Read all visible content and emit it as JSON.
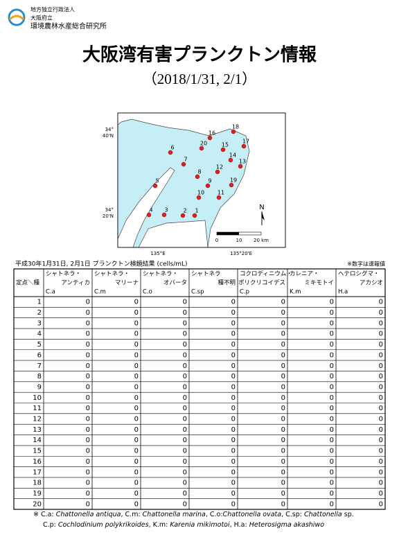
{
  "header": {
    "org": [
      "地方独立行政法人",
      "大阪府立",
      "環境農林水産総合研究所"
    ],
    "title": "大阪湾有害プランクトン情報",
    "subtitle": "（2018/1/31, 2/1）"
  },
  "map": {
    "lat_labels": [
      [
        "34°",
        "40'N"
      ],
      [
        "34°",
        "20'N"
      ]
    ],
    "lon_labels": [
      "135°E",
      "135°20'E"
    ],
    "scale": [
      "0",
      "10",
      "20 km"
    ],
    "north": "N",
    "stations": [
      "1",
      "2",
      "3",
      "4",
      "5",
      "6",
      "7",
      "8",
      "9",
      "10",
      "11",
      "12",
      "13",
      "14",
      "15",
      "16",
      "17",
      "18",
      "19",
      "20"
    ]
  },
  "table": {
    "caption": "平成30年1月31日, 2月1日  プランクトン検鏡結果 (cells/mL)",
    "note": "※数字は速報値",
    "header": [
      "定点＼種",
      {
        "line1": "シャトネラ・",
        "line2": "アンティカ",
        "abbr": "C.a"
      },
      {
        "line1": "シャトネラ・",
        "line2": "マリーナ",
        "abbr": "C.m"
      },
      {
        "line1": "シャトネラ・",
        "line2": "オバータ",
        "abbr": "C.o"
      },
      {
        "line1": "シャトネラ",
        "line2": "種不明",
        "abbr": "C.sp"
      },
      {
        "line1": "コクロディニウム・",
        "line2": "ポリクリコイデス",
        "abbr": "C.p"
      },
      {
        "line1": "カレニア・",
        "line2": "ミキモトイ",
        "abbr": "K.m"
      },
      {
        "line1": "ヘテロシグマ・",
        "line2": "アカシオ",
        "abbr": "H.a"
      }
    ],
    "rows": [
      [
        1,
        0,
        0,
        0,
        0,
        0,
        0,
        0
      ],
      [
        2,
        0,
        0,
        0,
        0,
        0,
        0,
        0
      ],
      [
        3,
        0,
        0,
        0,
        0,
        0,
        0,
        0
      ],
      [
        4,
        0,
        0,
        0,
        0,
        0,
        0,
        0
      ],
      [
        5,
        0,
        0,
        0,
        0,
        0,
        0,
        0
      ],
      [
        6,
        0,
        0,
        0,
        0,
        0,
        0,
        0
      ],
      [
        7,
        0,
        0,
        0,
        0,
        0,
        0,
        0
      ],
      [
        8,
        0,
        0,
        0,
        0,
        0,
        0,
        0
      ],
      [
        9,
        0,
        0,
        0,
        0,
        0,
        0,
        0
      ],
      [
        10,
        0,
        0,
        0,
        0,
        0,
        0,
        0
      ],
      [
        11,
        0,
        0,
        0,
        0,
        0,
        0,
        0
      ],
      [
        12,
        0,
        0,
        0,
        0,
        0,
        0,
        0
      ],
      [
        13,
        0,
        0,
        0,
        0,
        0,
        0,
        0
      ],
      [
        14,
        0,
        0,
        0,
        0,
        0,
        0,
        0
      ],
      [
        15,
        0,
        0,
        0,
        0,
        0,
        0,
        0
      ],
      [
        16,
        0,
        0,
        0,
        0,
        0,
        0,
        0
      ],
      [
        17,
        0,
        0,
        0,
        0,
        0,
        0,
        0
      ],
      [
        18,
        0,
        0,
        0,
        0,
        0,
        0,
        0
      ],
      [
        19,
        0,
        0,
        0,
        0,
        0,
        0,
        0
      ],
      [
        20,
        0,
        0,
        0,
        0,
        0,
        0,
        0
      ]
    ]
  },
  "footnote": [
    [
      {
        "text": "※ C.a: "
      },
      {
        "text": "Chattonella antiqua",
        "italic": true
      },
      {
        "text": ", C.m: "
      },
      {
        "text": "Chattonella marina",
        "italic": true
      },
      {
        "text": ", C.o:"
      },
      {
        "text": "Chattonella ovata",
        "italic": true
      },
      {
        "text": ", C.sp: "
      },
      {
        "text": "Chattonella",
        "italic": true
      },
      {
        "text": " sp."
      }
    ],
    [
      {
        "text": "C.p: "
      },
      {
        "text": "Cochlodinium polykrikoides",
        "italic": true
      },
      {
        "text": ",  K.m: "
      },
      {
        "text": "Karenia mikimotoi",
        "italic": true
      },
      {
        "text": ",  H.a: "
      },
      {
        "text": "Heterosigma akashiwo",
        "italic": true
      }
    ]
  ]
}
